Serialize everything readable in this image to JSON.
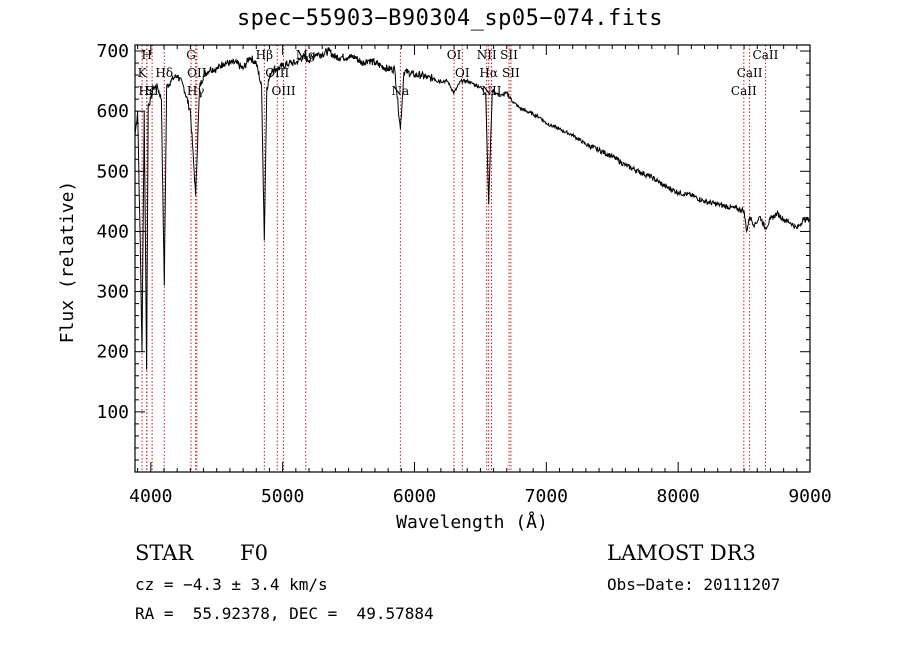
{
  "chart_data": {
    "type": "line",
    "title": "spec−55903−B90304_sp05−074.fits",
    "xlabel": "Wavelength (Å)",
    "ylabel": "Flux (relative)",
    "xlim": [
      3880,
      9000
    ],
    "ylim": [
      0,
      710
    ],
    "xticks": [
      4000,
      5000,
      6000,
      7000,
      8000,
      9000
    ],
    "yticks": [
      100,
      200,
      300,
      400,
      500,
      600,
      700
    ],
    "series": [
      {
        "name": "flux",
        "color": "#000000",
        "x": [
          3880,
          3900,
          3920,
          3933,
          3950,
          3968,
          3980,
          4000,
          4020,
          4050,
          4080,
          4102,
          4120,
          4150,
          4200,
          4250,
          4300,
          4340,
          4370,
          4400,
          4450,
          4500,
          4550,
          4600,
          4650,
          4700,
          4750,
          4800,
          4840,
          4861,
          4880,
          4920,
          4960,
          5000,
          5050,
          5100,
          5150,
          5200,
          5250,
          5300,
          5350,
          5400,
          5450,
          5500,
          5550,
          5600,
          5650,
          5700,
          5750,
          5800,
          5850,
          5893,
          5920,
          5950,
          6000,
          6050,
          6100,
          6150,
          6200,
          6250,
          6300,
          6350,
          6400,
          6450,
          6500,
          6540,
          6563,
          6590,
          6620,
          6650,
          6700,
          6750,
          6800,
          6850,
          6900,
          6950,
          7000,
          7100,
          7200,
          7300,
          7400,
          7500,
          7600,
          7700,
          7800,
          7900,
          8000,
          8100,
          8200,
          8300,
          8400,
          8498,
          8520,
          8542,
          8580,
          8620,
          8662,
          8700,
          8750,
          8800,
          8850,
          8900,
          8950,
          9000
        ],
        "values": [
          560,
          600,
          380,
          200,
          600,
          170,
          610,
          620,
          640,
          640,
          620,
          310,
          640,
          650,
          660,
          640,
          600,
          460,
          640,
          660,
          670,
          670,
          680,
          680,
          680,
          670,
          690,
          680,
          640,
          385,
          640,
          670,
          670,
          675,
          680,
          680,
          690,
          685,
          695,
          695,
          700,
          690,
          690,
          690,
          690,
          680,
          685,
          680,
          675,
          670,
          670,
          570,
          665,
          665,
          660,
          660,
          655,
          655,
          650,
          650,
          630,
          650,
          650,
          645,
          640,
          630,
          445,
          635,
          630,
          625,
          630,
          615,
          605,
          600,
          595,
          590,
          580,
          570,
          560,
          545,
          535,
          525,
          510,
          500,
          490,
          475,
          465,
          460,
          450,
          445,
          440,
          435,
          400,
          425,
          410,
          425,
          405,
          420,
          430,
          420,
          415,
          405,
          420,
          420
        ]
      }
    ],
    "lines": [
      {
        "label": "H",
        "x": 3969,
        "row": 0
      },
      {
        "label": "K",
        "x": 3934,
        "row": 1
      },
      {
        "label": "Hε",
        "x": 3970,
        "row": 2
      },
      {
        "label": "SI",
        "x": 4010,
        "row": 2
      },
      {
        "label": "Hδ",
        "x": 4102,
        "row": 1
      },
      {
        "label": "G",
        "x": 4305,
        "row": 0
      },
      {
        "label": "OII",
        "x": 4349,
        "row": 1
      },
      {
        "label": "Hγ",
        "x": 4340,
        "row": 2
      },
      {
        "label": "Hβ",
        "x": 4861,
        "row": 0
      },
      {
        "label": "OIII",
        "x": 4959,
        "row": 1
      },
      {
        "label": "OIII",
        "x": 5007,
        "row": 2
      },
      {
        "label": "Mg",
        "x": 5175,
        "row": 0
      },
      {
        "label": "Na",
        "x": 5893,
        "row": 2
      },
      {
        "label": "OI",
        "x": 6300,
        "row": 0
      },
      {
        "label": "OI",
        "x": 6363,
        "row": 1
      },
      {
        "label": "NII",
        "x": 6548,
        "row": 0
      },
      {
        "label": "SII",
        "x": 6717,
        "row": 0
      },
      {
        "label": "Hα",
        "x": 6563,
        "row": 1
      },
      {
        "label": "SII",
        "x": 6731,
        "row": 1
      },
      {
        "label": "NII",
        "x": 6584,
        "row": 2
      },
      {
        "label": "CaII",
        "x": 8662,
        "row": 0
      },
      {
        "label": "CaII",
        "x": 8542,
        "row": 1
      },
      {
        "label": "CaII",
        "x": 8498,
        "row": 2
      }
    ]
  },
  "info": {
    "obj_class": "STAR",
    "subclass": "F0",
    "survey": "LAMOST DR3",
    "cz": "cz = −4.3 ± 3.4 km/s",
    "obs_date": "Obs−Date: 20111207",
    "coords": "RA =  55.92378, DEC =  49.57884"
  },
  "colors": {
    "line_marker": "#c81e1e",
    "spectrum": "#000000"
  }
}
